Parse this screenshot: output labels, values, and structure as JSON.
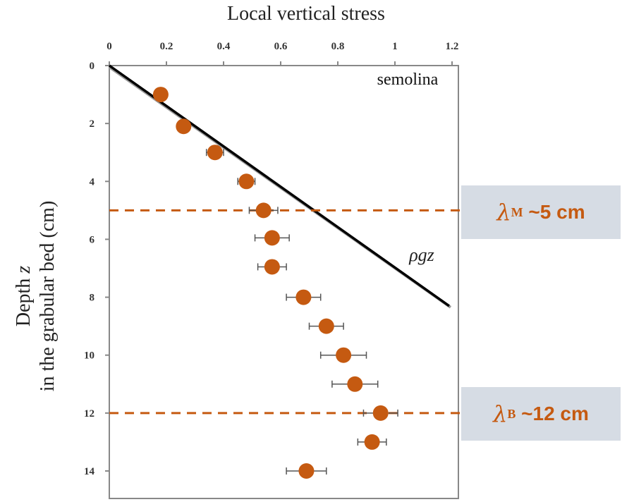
{
  "chart_data": {
    "type": "scatter",
    "title": "",
    "xlabel": "Local vertical stress",
    "ylabel": "Depth z in the grabular bed (cm)",
    "ylabel_line1_prefix": "Depth ",
    "ylabel_line1_var": "z",
    "ylabel_line2": "in the grabular bed (cm)",
    "xlim": [
      0,
      1.2
    ],
    "ylim": [
      0,
      15
    ],
    "y_inverted": true,
    "x_axis_position": "top",
    "x_ticks": [
      0,
      0.2,
      0.4,
      0.6,
      0.8,
      1,
      1.2
    ],
    "x_tick_labels": [
      "0",
      "0.2",
      "0.4",
      "0.6",
      "0.8",
      "1",
      "1.2"
    ],
    "y_ticks": [
      0,
      2,
      4,
      6,
      8,
      10,
      12,
      14
    ],
    "y_tick_labels": [
      "0",
      "2",
      "4",
      "6",
      "8",
      "10",
      "12",
      "14"
    ],
    "grid": false,
    "panel_label": "semolina",
    "points": [
      {
        "x": 0.18,
        "y": 1,
        "err": 0.01
      },
      {
        "x": 0.26,
        "y": 2.1,
        "err": 0.02
      },
      {
        "x": 0.37,
        "y": 3,
        "err": 0.03
      },
      {
        "x": 0.48,
        "y": 4,
        "err": 0.03
      },
      {
        "x": 0.54,
        "y": 5,
        "err": 0.05
      },
      {
        "x": 0.57,
        "y": 5.95,
        "err": 0.06
      },
      {
        "x": 0.57,
        "y": 6.95,
        "err": 0.05
      },
      {
        "x": 0.68,
        "y": 8,
        "err": 0.06
      },
      {
        "x": 0.76,
        "y": 9,
        "err": 0.06
      },
      {
        "x": 0.82,
        "y": 10,
        "err": 0.08
      },
      {
        "x": 0.86,
        "y": 11,
        "err": 0.08
      },
      {
        "x": 0.95,
        "y": 12,
        "err": 0.06
      },
      {
        "x": 0.92,
        "y": 13,
        "err": 0.05
      },
      {
        "x": 0.69,
        "y": 14,
        "err": 0.07
      }
    ],
    "reference_line": {
      "label_prefix": "ρ",
      "label_rest": "gz",
      "x": [
        0,
        1.19
      ],
      "y": [
        0,
        8.3
      ]
    },
    "markers": [
      {
        "name": "lambda_M",
        "y": 5,
        "symbol": "λ",
        "sub": "M",
        "text": " ~5 cm"
      },
      {
        "name": "lambda_B",
        "y": 12,
        "symbol": "λ",
        "sub": "B",
        "text": " ~12 cm"
      }
    ],
    "colors": {
      "points": "#c55a11",
      "dashed": "#c55a11",
      "callout_bg": "#d6dce4",
      "callout_text": "#c55a11",
      "axis": "#888888",
      "line": "#000000"
    }
  }
}
